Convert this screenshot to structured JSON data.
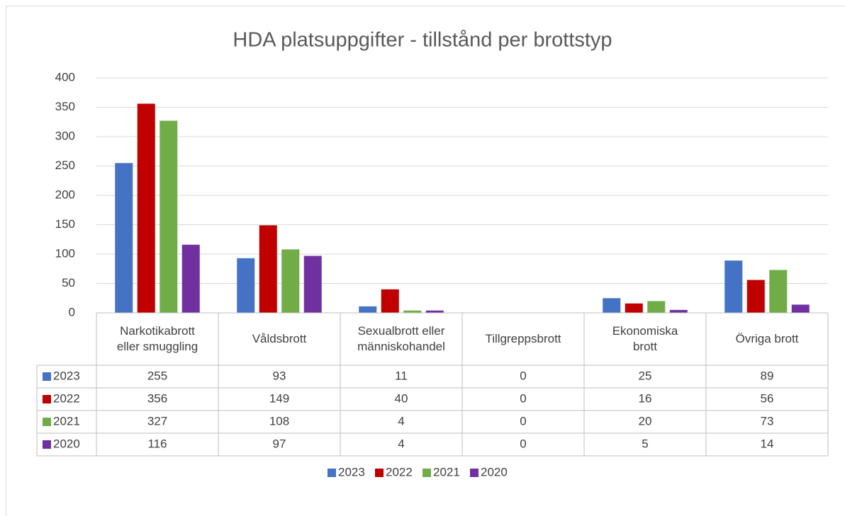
{
  "chart_data": {
    "type": "bar",
    "title": "HDA platsuppgifter - tillstånd per brottstyp",
    "categories": [
      "Narkotikabrott\neller smuggling",
      "Våldsbrott",
      "Sexualbrott eller\nmänniskohandel",
      "Tillgreppsbrott",
      "Ekonomiska\nbrott",
      "Övriga brott"
    ],
    "series": [
      {
        "name": "2023",
        "color": "#4472c4",
        "values": [
          255,
          93,
          11,
          0,
          25,
          89
        ]
      },
      {
        "name": "2022",
        "color": "#c00000",
        "values": [
          356,
          149,
          40,
          0,
          16,
          56
        ]
      },
      {
        "name": "2021",
        "color": "#70ad47",
        "values": [
          327,
          108,
          4,
          0,
          20,
          73
        ]
      },
      {
        "name": "2020",
        "color": "#7030a0",
        "values": [
          116,
          97,
          4,
          0,
          5,
          14
        ]
      }
    ],
    "ylim": [
      0,
      400
    ],
    "yticks": [
      0,
      50,
      100,
      150,
      200,
      250,
      300,
      350,
      400
    ],
    "grid": true,
    "legend": "bottom",
    "data_table": true
  }
}
